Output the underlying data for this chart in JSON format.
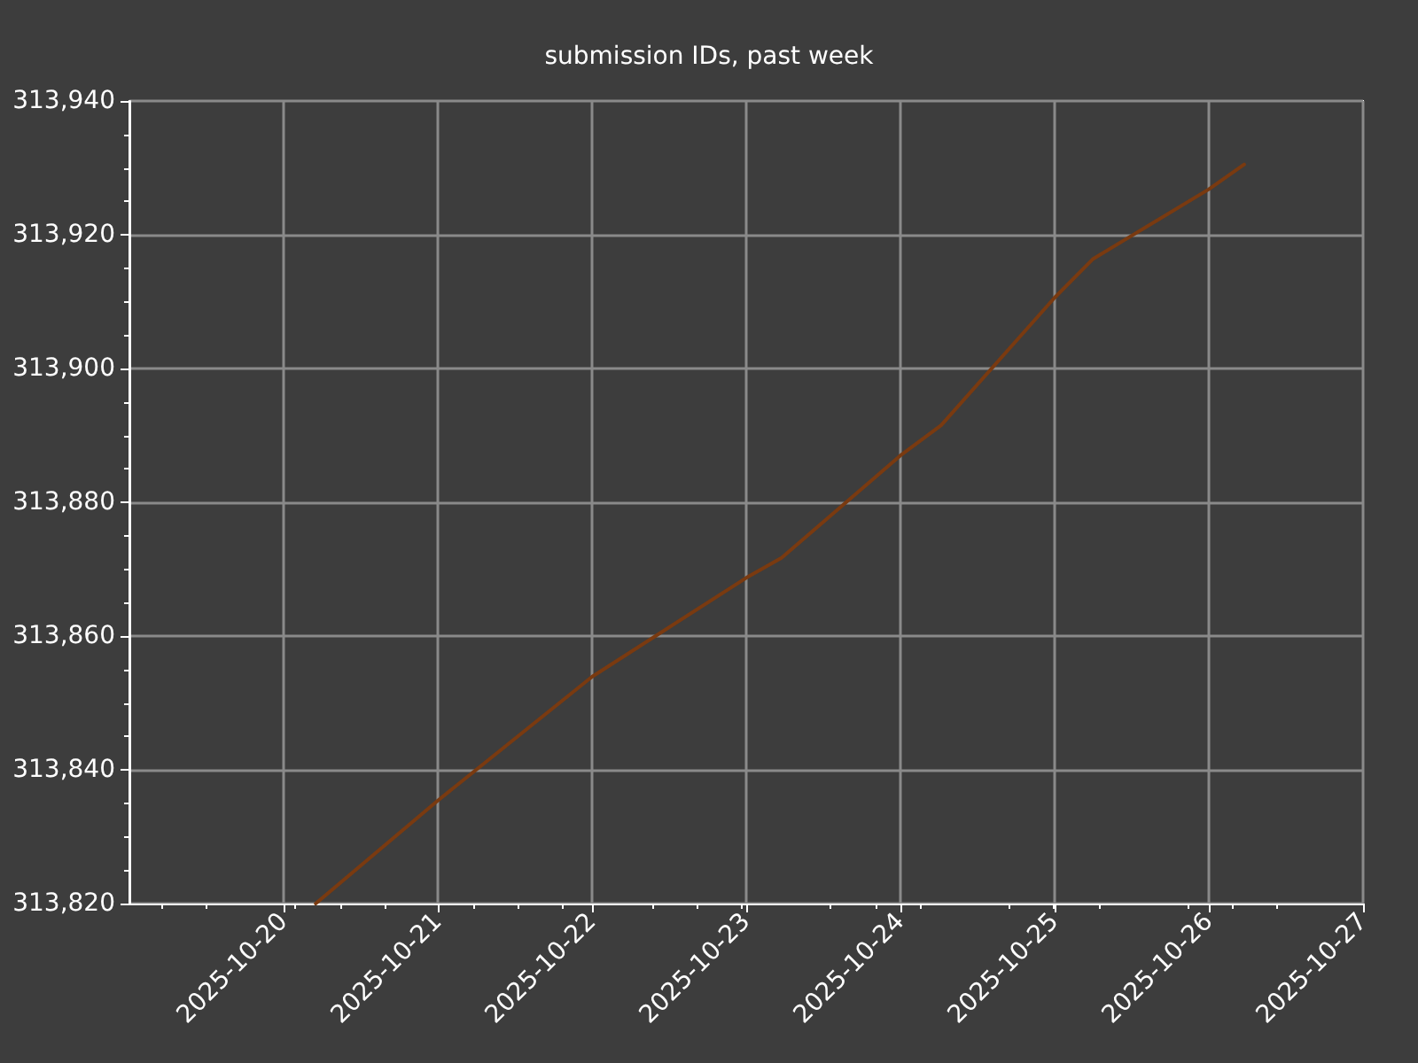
{
  "chart_data": {
    "type": "line",
    "title": "submission IDs, past week",
    "x": [
      "2025-10-20T05:00",
      "2025-10-21T00:00",
      "2025-10-22T00:00",
      "2025-10-23T00:00",
      "2025-10-23T05:30",
      "2025-10-24T00:00",
      "2025-10-24T06:20",
      "2025-10-25T00:00",
      "2025-10-25T06:00",
      "2025-10-26T00:00",
      "2025-10-26T05:30"
    ],
    "series": [
      {
        "color": "#7a3a10",
        "values": [
          313820,
          313835.4,
          313853.9,
          313868.7,
          313871.7,
          313887,
          313891.5,
          313910.6,
          313916.4,
          313926.8,
          313930.5
        ]
      }
    ],
    "xlim": [
      "2025-10-19",
      "2025-10-27"
    ],
    "xticks": [
      "2025-10-20",
      "2025-10-21",
      "2025-10-22",
      "2025-10-23",
      "2025-10-24",
      "2025-10-25",
      "2025-10-26",
      "2025-10-27"
    ],
    "ylim": [
      313820,
      313940
    ],
    "yticks": [
      {
        "value": 313820,
        "label": "313,820"
      },
      {
        "value": 313840,
        "label": "313,840"
      },
      {
        "value": 313860,
        "label": "313,860"
      },
      {
        "value": 313880,
        "label": "313,880"
      },
      {
        "value": 313900,
        "label": "313,900"
      },
      {
        "value": 313920,
        "label": "313,920"
      },
      {
        "value": 313940,
        "label": "313,940"
      }
    ],
    "grid": true,
    "marker": "none",
    "line_style": "solid"
  }
}
